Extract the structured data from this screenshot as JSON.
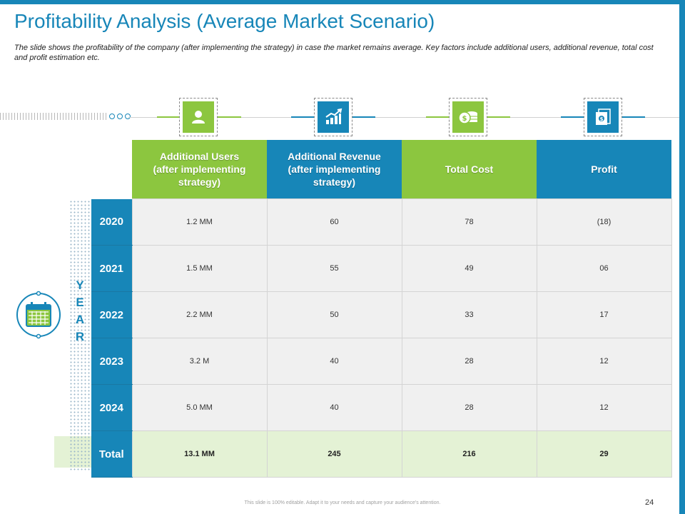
{
  "slide": {
    "title": "Profitability Analysis (Average Market Scenario)",
    "subtitle": "The slide shows the profitability of the company (after implementing the strategy) in case the market remains average. Key factors include additional users, additional revenue, total cost and profit estimation etc.",
    "footer": "This slide is 100% editable. Adapt it to your needs and capture your audience's attention.",
    "page_number": "24"
  },
  "colors": {
    "accent_blue": "#1786b8",
    "accent_green": "#8cc63f",
    "total_row": "#e4f2d5",
    "cell_bg": "#f0f0f0"
  },
  "icons": [
    "user-icon",
    "growth-chart-icon",
    "coins-icon",
    "money-bill-icon",
    "calendar-icon"
  ],
  "year_label": [
    "Y",
    "E",
    "A",
    "R"
  ],
  "table": {
    "headers": [
      "Additional Users (after implementing strategy)",
      "Additional Revenue (after implementing strategy)",
      "Total Cost",
      "Profit"
    ],
    "rows": [
      {
        "year": "2020",
        "values": [
          "1.2 MM",
          "60",
          "78",
          "(18)"
        ]
      },
      {
        "year": "2021",
        "values": [
          "1.5 MM",
          "55",
          "49",
          "06"
        ]
      },
      {
        "year": "2022",
        "values": [
          "2.2 MM",
          "50",
          "33",
          "17"
        ]
      },
      {
        "year": "2023",
        "values": [
          "3.2 M",
          "40",
          "28",
          "12"
        ]
      },
      {
        "year": "2024",
        "values": [
          "5.0 MM",
          "40",
          "28",
          "12"
        ]
      }
    ],
    "total": {
      "label": "Total",
      "values": [
        "13.1 MM",
        "245",
        "216",
        "29"
      ]
    }
  }
}
